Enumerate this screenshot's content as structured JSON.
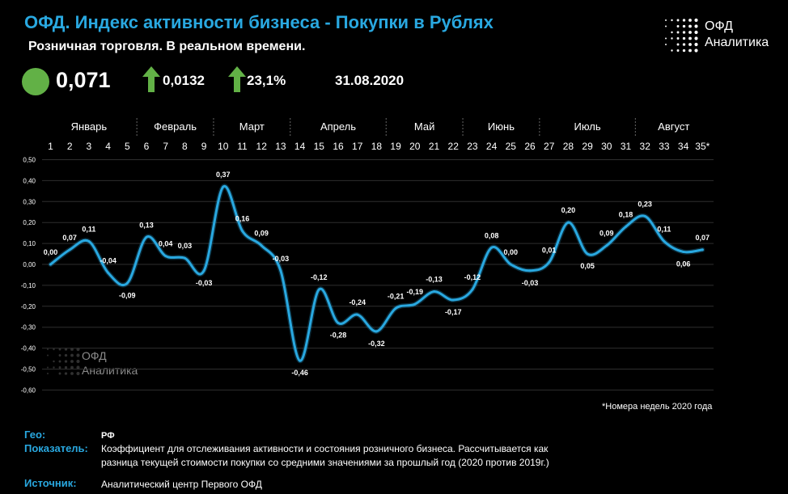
{
  "header": {
    "title": "ОФД. Индекс активности бизнеса - Покупки в Рублях",
    "subtitle": "Розничная торговля. В реальном времени.",
    "index_value": "0,071",
    "change_abs": "0,0132",
    "change_pct": "23,1%",
    "date": "31.08.2020",
    "status_color": "#62b146",
    "arrow_color": "#62b146"
  },
  "logo": {
    "line1": "ОФД",
    "line2": "Аналитика"
  },
  "watermark": {
    "line1": "ОФД",
    "line2": "Аналитика"
  },
  "chart_data": {
    "type": "line",
    "months": [
      "Январь",
      "Февраль",
      "Март",
      "Апрель",
      "Май",
      "Июнь",
      "Июль",
      "Август"
    ],
    "weeks": [
      "1",
      "2",
      "3",
      "4",
      "5",
      "6",
      "7",
      "8",
      "9",
      "10",
      "11",
      "12",
      "13",
      "14",
      "15",
      "16",
      "17",
      "18",
      "19",
      "20",
      "21",
      "22",
      "23",
      "24",
      "25",
      "26",
      "27",
      "28",
      "29",
      "30",
      "31",
      "32",
      "33",
      "34",
      "35*"
    ],
    "values": [
      0.0,
      0.07,
      0.11,
      -0.04,
      -0.09,
      0.13,
      0.04,
      0.03,
      -0.03,
      0.37,
      0.16,
      0.09,
      -0.03,
      -0.46,
      -0.12,
      -0.28,
      -0.24,
      -0.32,
      -0.21,
      -0.19,
      -0.13,
      -0.17,
      -0.12,
      0.08,
      0.0,
      -0.03,
      0.01,
      0.2,
      0.05,
      0.09,
      0.18,
      0.23,
      0.11,
      0.06,
      0.07
    ],
    "data_labels": [
      "0,00",
      "0,07",
      "0,11",
      "-0,04",
      "-0,09",
      "0,13",
      "0,04",
      "0,03",
      "-0,03",
      "0,37",
      "0,16",
      "0,09",
      "-0,03",
      "-0,46",
      "-0,12",
      "-0,28",
      "-0,24",
      "-0,32",
      "-0,21",
      "-0,19",
      "-0,13",
      "-0,17",
      "-0,12",
      "0,08",
      "0,00",
      "-0,03",
      "0,01",
      "0,20",
      "0,05",
      "0,09",
      "0,18",
      "0,23",
      "0,11",
      "0,06",
      "0,07"
    ],
    "y_ticks": [
      0.5,
      0.4,
      0.3,
      0.2,
      0.1,
      0.0,
      -0.1,
      -0.2,
      -0.3,
      -0.4,
      -0.5,
      -0.6
    ],
    "y_tick_labels": [
      "0,50",
      "0,40",
      "0,30",
      "0,20",
      "0,10",
      "0,00",
      "-0,10",
      "-0,20",
      "-0,30",
      "-0,40",
      "-0,50",
      "-0,60"
    ],
    "ylim": [
      -0.6,
      0.5
    ],
    "grid": true,
    "line_color": "#29a8e0"
  },
  "footnote": "*Номера недель 2020 года",
  "footer": {
    "geo_label": "Гео:",
    "geo_value": "РФ",
    "indicator_label": "Показатель:",
    "indicator_value": "Коэффициент для отслеживания активности и состояния розничного бизнеса. Рассчитывается как разница текущей стоимости покупки со средними значениями за прошлый год (2020 против 2019г.)",
    "source_label": "Источник:",
    "source_value": "Аналитический центр  Первого ОФД"
  }
}
